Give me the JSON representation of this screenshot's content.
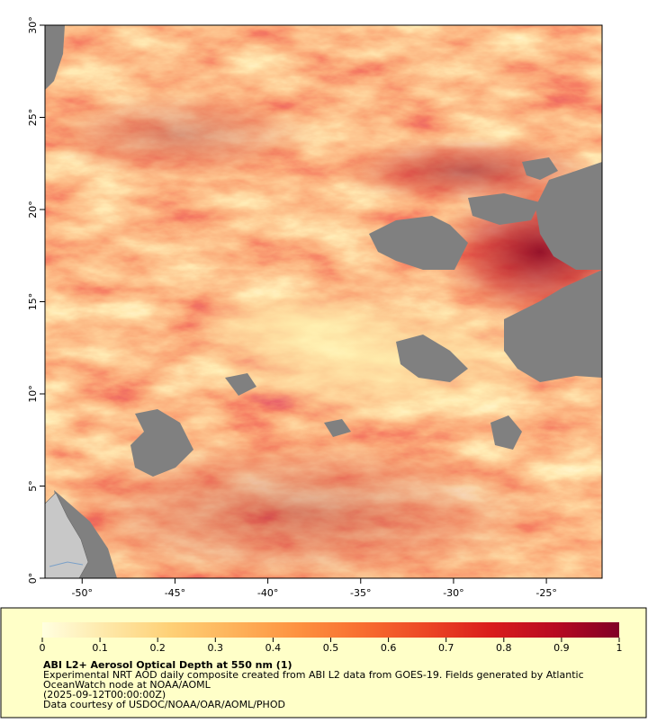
{
  "map": {
    "xlim": [
      -52,
      -22
    ],
    "xticks": [
      {
        "value": -50,
        "label": "-50°"
      },
      {
        "value": -45,
        "label": "-45°"
      },
      {
        "value": -40,
        "label": "-40°"
      },
      {
        "value": -35,
        "label": "-35°"
      },
      {
        "value": -30,
        "label": "-30°"
      },
      {
        "value": -25,
        "label": "-25°"
      }
    ],
    "ylim": [
      0,
      30
    ],
    "yticks": [
      {
        "value": 0,
        "label": "0°"
      },
      {
        "value": 5,
        "label": "5°"
      },
      {
        "value": 10,
        "label": "10°"
      },
      {
        "value": 15,
        "label": "15°"
      },
      {
        "value": 20,
        "label": "20°"
      },
      {
        "value": 25,
        "label": "25°"
      },
      {
        "value": 30,
        "label": "30°"
      }
    ]
  },
  "colorbar": {
    "lim": [
      0,
      1
    ],
    "ticks": [
      0,
      0.1,
      0.2,
      0.3,
      0.4,
      0.5,
      0.6,
      0.7,
      0.8,
      0.9,
      1
    ],
    "colors": [
      "#ffffe0",
      "#fee8a8",
      "#fed076",
      "#fdb25a",
      "#fd9140",
      "#f86d30",
      "#ec4625",
      "#d91c1c",
      "#b80a22",
      "#800026"
    ]
  },
  "caption": {
    "title": "ABI L2+ Aerosol Optical Depth at 550 nm (1)",
    "lines": [
      "Experimental NRT AOD daily composite created from ABI L2 data from GOES-19. Fields generated by Atlantic",
      "OceanWatch node at NOAA/AOML",
      "(2025-09-12T00:00:00Z)",
      "Data courtesy of USDOC/NOAA/OAR/AOML/PHOD"
    ]
  }
}
